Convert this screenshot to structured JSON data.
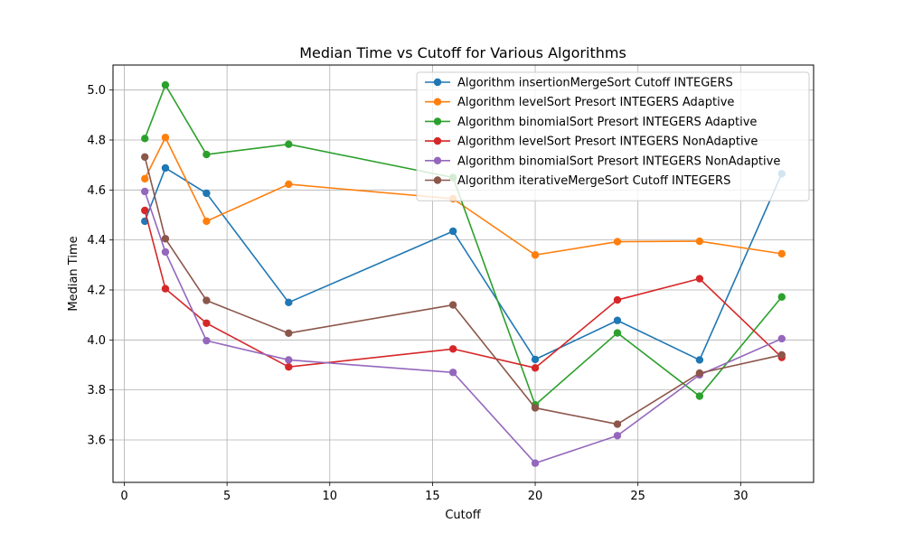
{
  "chart_data": {
    "type": "line",
    "title": "Median Time vs Cutoff for Various Algorithms",
    "xlabel": "Cutoff",
    "ylabel": "Median Time",
    "xlim": [
      -0.55,
      33.55
    ],
    "ylim": [
      3.43,
      5.1
    ],
    "xticks": [
      0,
      5,
      10,
      15,
      20,
      25,
      30
    ],
    "yticks": [
      3.6,
      3.8,
      4.0,
      4.2,
      4.4,
      4.6,
      4.8,
      5.0
    ],
    "grid": true,
    "legend_position": "top-right",
    "x": [
      1,
      2,
      4,
      8,
      16,
      20,
      24,
      28,
      32
    ],
    "series": [
      {
        "name": "Algorithm insertionMergeSort Cutoff INTEGERS",
        "color": "#1f77b4",
        "values": [
          4.475,
          4.688,
          4.587,
          4.15,
          4.435,
          3.922,
          4.078,
          3.92,
          4.665
        ]
      },
      {
        "name": "Algorithm levelSort Presort INTEGERS Adaptive",
        "color": "#ff7f0e",
        "values": [
          4.645,
          4.81,
          4.475,
          4.623,
          4.565,
          4.34,
          4.393,
          4.395,
          4.345
        ]
      },
      {
        "name": "Algorithm binomialSort Presort INTEGERS Adaptive",
        "color": "#2ca02c",
        "values": [
          4.806,
          5.02,
          4.742,
          4.783,
          4.65,
          3.74,
          4.028,
          3.775,
          4.172
        ]
      },
      {
        "name": "Algorithm levelSort Presort INTEGERS NonAdaptive",
        "color": "#d62728",
        "values": [
          4.518,
          4.205,
          4.067,
          3.892,
          3.964,
          3.888,
          4.16,
          4.245,
          3.93
        ]
      },
      {
        "name": "Algorithm binomialSort Presort INTEGERS NonAdaptive",
        "color": "#9467bd",
        "values": [
          4.594,
          4.352,
          3.997,
          3.92,
          3.87,
          3.507,
          3.617,
          3.86,
          4.005
        ]
      },
      {
        "name": "Algorithm iterativeMergeSort Cutoff INTEGERS",
        "color": "#8c564b",
        "values": [
          4.732,
          4.405,
          4.158,
          4.027,
          4.14,
          3.728,
          3.663,
          3.867,
          3.94
        ]
      }
    ]
  }
}
